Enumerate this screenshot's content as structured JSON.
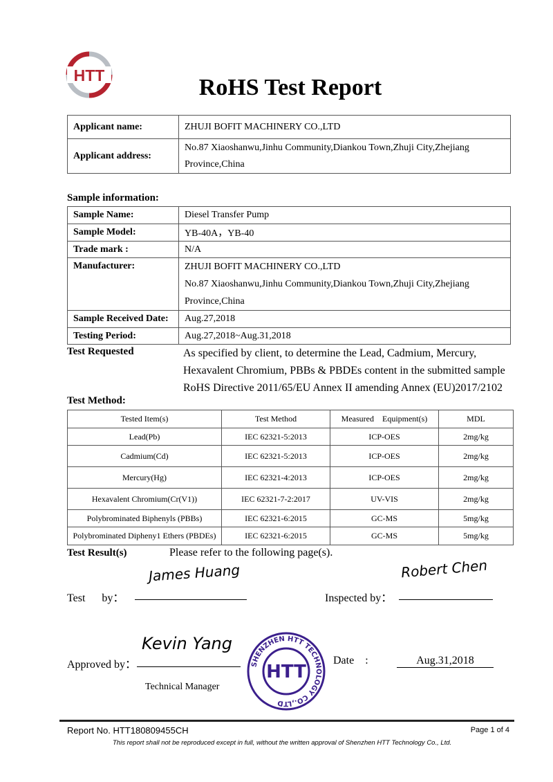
{
  "logo": {
    "text": "HTT",
    "colors": {
      "red": "#b5232f",
      "gray": "#b9bec4"
    }
  },
  "title": "RoHS Test Report",
  "applicant": {
    "name_label": "Applicant name:",
    "name": "ZHUJI BOFIT MACHINERY CO.,LTD",
    "address_label": "Applicant address:",
    "address_line1": "No.87 Xiaoshanwu,Jinhu Community,Diankou Town,Zhuji City,Zhejiang",
    "address_line2": "Province,China"
  },
  "sample": {
    "heading": "Sample information:",
    "rows": [
      {
        "label": "Sample Name:",
        "value": "Diesel Transfer Pump"
      },
      {
        "label": "Sample Model:",
        "value": "YB-40A，YB-40"
      },
      {
        "label": "Trade mark :",
        "value": "N/A"
      },
      {
        "label": "Manufacturer:",
        "value": "ZHUJI BOFIT MACHINERY CO.,LTD",
        "value2": "No.87 Xiaoshanwu,Jinhu Community,Diankou Town,Zhuji City,Zhejiang",
        "value3": "Province,China"
      },
      {
        "label": "Sample Received Date:",
        "value": "Aug.27,2018"
      },
      {
        "label": "Testing Period:",
        "value": "Aug.27,2018~Aug.31,2018"
      }
    ]
  },
  "test_requested": {
    "label": "Test Requested",
    "lines": [
      "As specified by client, to determine the Lead, Cadmium, Mercury,",
      "Hexavalent Chromium, PBBs & PBDEs content in the submitted sample",
      "RoHS Directive 2011/65/EU Annex II amending Annex (EU)2017/2102"
    ]
  },
  "test_method": {
    "heading": "Test Method:",
    "columns": [
      "Tested Item(s)",
      "Test Method",
      "Measured    Equipment(s)",
      "MDL"
    ],
    "rows": [
      [
        "Lead(Pb)",
        "IEC 62321-5:2013",
        "ICP-OES",
        "2mg/kg"
      ],
      [
        "Cadmium(Cd)",
        "IEC 62321-5:2013",
        "ICP-OES",
        "2mg/kg"
      ],
      [
        "Mercury(Hg)",
        "IEC 62321-4:2013",
        "ICP-OES",
        "2mg/kg"
      ],
      [
        "Hexavalent Chromium(Cr(V1))",
        "IEC 62321-7-2:2017",
        "UV-VIS",
        "2mg/kg"
      ],
      [
        "Polybrominated Biphenyls (PBBs)",
        "IEC 62321-6:2015",
        "GC-MS",
        "5mg/kg"
      ],
      [
        "Polybrominated Dipheny1 Ethers (PBDEs)",
        "IEC 62321-6:2015",
        "GC-MS",
        "5mg/kg"
      ]
    ]
  },
  "test_result": {
    "label": "Test Result(s)",
    "text": "Please refer to the following page(s)."
  },
  "signatures": {
    "test_by_label": "Test      by：",
    "test_by_signature": "James Huang",
    "inspected_by_label": "Inspected by：",
    "inspected_by_signature": "Robert Chen",
    "approved_by_label": "Approved by：",
    "approved_by_signature": "Kevin Yang",
    "approved_title": "Technical Manager",
    "date_label": "Date    :",
    "date": "Aug.31,2018"
  },
  "stamp": {
    "center": "HTT",
    "ring": "SHENZHEN HTT TECHNOLOGY CO.,LTD",
    "color": "#3b1f8c"
  },
  "footer": {
    "report_no": "Report No. HTT180809455CH",
    "page": "Page 1 of 4",
    "disclaimer": "This report shall not be reproduced except in full, without the written approval of Shenzhen HTT Technology Co., Ltd."
  }
}
